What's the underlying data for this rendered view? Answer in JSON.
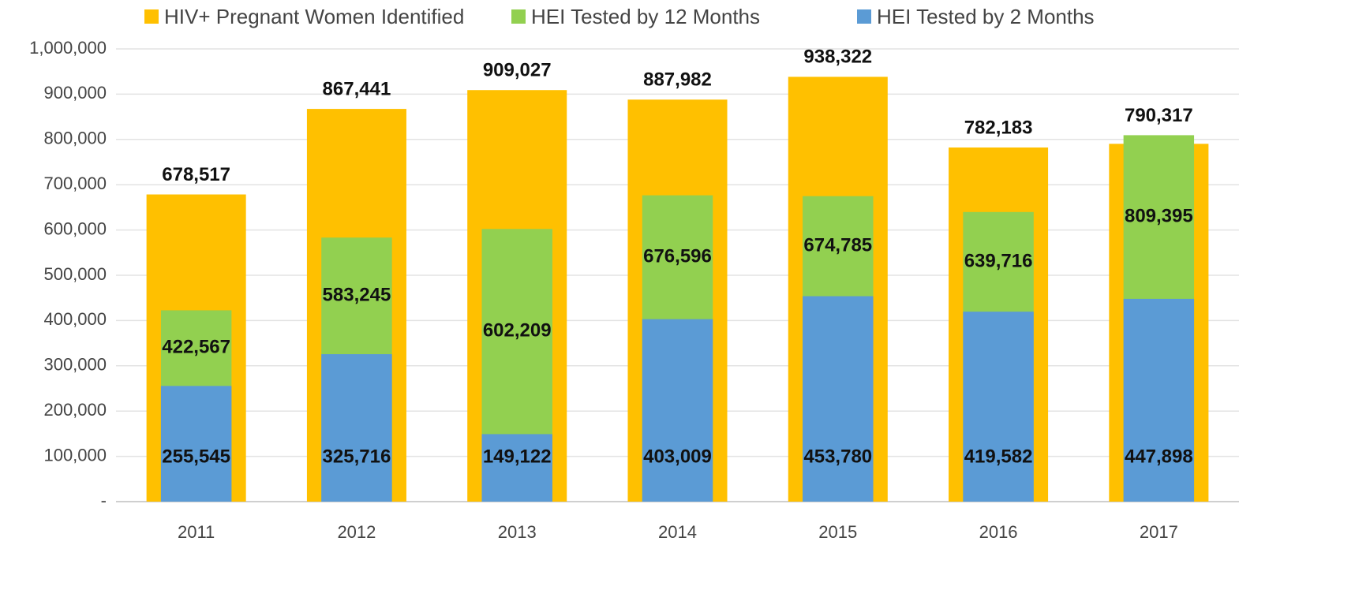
{
  "chart_data": {
    "type": "bar",
    "categories": [
      "2011",
      "2012",
      "2013",
      "2014",
      "2015",
      "2016",
      "2017"
    ],
    "series": [
      {
        "name": "HIV+ Pregnant Women Identified",
        "color": "#ffc000",
        "values": [
          678517,
          867441,
          909027,
          887982,
          938322,
          782183,
          790317
        ],
        "value_labels": [
          "678,517",
          "867,441",
          "909,027",
          "887,982",
          "938,322",
          "782,183",
          "790,317"
        ]
      },
      {
        "name": "HEI Tested by 12 Months",
        "color": "#92d050",
        "values": [
          422567,
          583245,
          602209,
          676596,
          674785,
          639716,
          809395
        ],
        "value_labels": [
          "422,567",
          "583,245",
          "602,209",
          "676,596",
          "674,785",
          "639,716",
          "809,395"
        ]
      },
      {
        "name": "HEI Tested by 2 Months",
        "color": "#5b9bd5",
        "values": [
          255545,
          325716,
          149122,
          403009,
          453780,
          419582,
          447898
        ],
        "value_labels": [
          "255,545",
          "325,716",
          "149,122",
          "403,009",
          "453,780",
          "419,582",
          "447,898"
        ]
      }
    ],
    "ylim": [
      0,
      1000000
    ],
    "yticks": [
      {
        "value": 0,
        "label": "-"
      },
      {
        "value": 100000,
        "label": "100,000"
      },
      {
        "value": 200000,
        "label": "200,000"
      },
      {
        "value": 300000,
        "label": "300,000"
      },
      {
        "value": 400000,
        "label": "400,000"
      },
      {
        "value": 500000,
        "label": "500,000"
      },
      {
        "value": 600000,
        "label": "600,000"
      },
      {
        "value": 700000,
        "label": "700,000"
      },
      {
        "value": 800000,
        "label": "800,000"
      },
      {
        "value": 900000,
        "label": "900,000"
      },
      {
        "value": 1000000,
        "label": "1,000,000"
      }
    ],
    "grid": true,
    "legend": "top"
  }
}
